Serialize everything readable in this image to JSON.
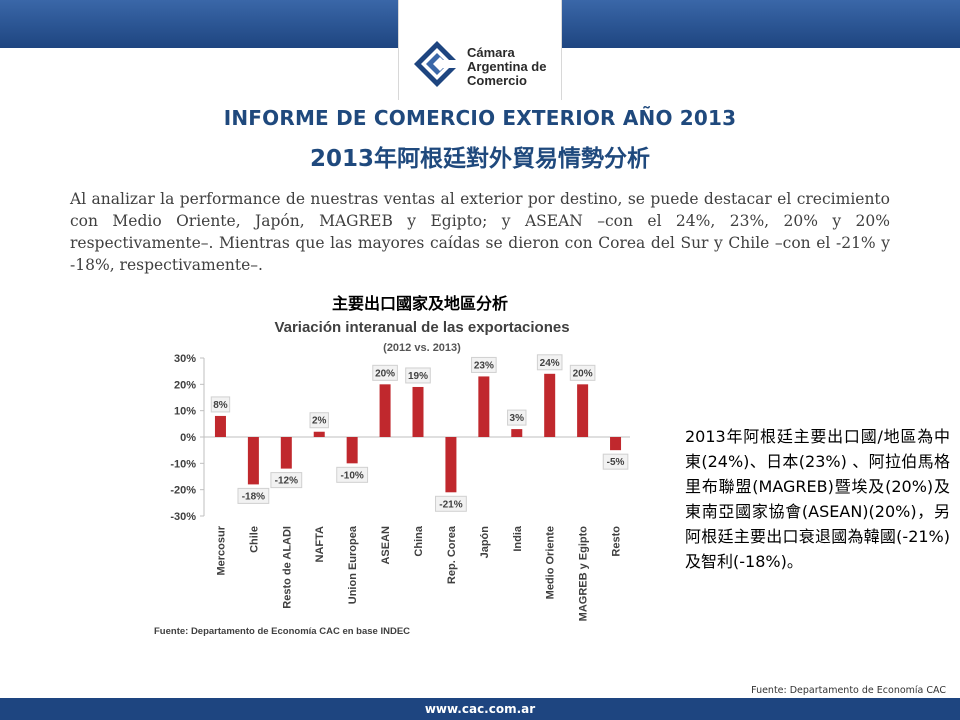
{
  "header": {
    "logo_lines": [
      "Cámara",
      "Argentina de",
      "Comercio"
    ]
  },
  "title_es": "INFORME DE COMERCIO EXTERIOR AÑO 2013",
  "title_zh": "2013年阿根廷對外貿易情勢分析",
  "intro_text": "Al analizar la performance de nuestras ventas al exterior por destino, se puede destacar el crecimiento con Medio Oriente, Japón, MAGREB y Egipto; y ASEAN –con el 24%, 23%, 20% y 20% respectivamente–. Mientras que las mayores caídas se dieron con Corea del Sur y Chile –con el -21% y -18%, respectivamente–.",
  "chart_heading": "主要出口國家及地區分析",
  "side_text": "2013年阿根廷主要出口國/地區為中東(24%)、日本(23%) 、阿拉伯馬格里布聯盟(MAGREB)暨埃及(20%)及東南亞國家協會(ASEAN)(20%)，另阿根廷主要出口衰退國為韓國(-21%)及智利(-18%)。",
  "side_source": "Fuente: Departamento de Economía CAC",
  "footer_url": "www.cac.com.ar",
  "colors": {
    "bar": "#c0282d",
    "brand_blue": "#1e4580",
    "title_blue": "#1f497d"
  },
  "chart_data": {
    "type": "bar",
    "title": "Variación interanual de las exportaciones",
    "subtitle": "(2012 vs. 2013)",
    "categories": [
      "Mercosur",
      "Chile",
      "Resto de ALADI",
      "NAFTA",
      "Union Europea",
      "ASEAN",
      "China",
      "Rep. Corea",
      "Japón",
      "India",
      "Medio Oriente",
      "MAGREB y Egipto",
      "Resto"
    ],
    "values": [
      8,
      -18,
      -12,
      2,
      -10,
      20,
      19,
      -21,
      23,
      3,
      24,
      20,
      -5
    ],
    "data_labels": [
      "8%",
      "-18%",
      "-12%",
      "2%",
      "-10%",
      "20%",
      "19%",
      "-21%",
      "23%",
      "3%",
      "24%",
      "20%",
      "-5%"
    ],
    "yticks": [
      "30%",
      "20%",
      "10%",
      "0%",
      "-10%",
      "-20%",
      "-30%"
    ],
    "ylim": [
      -30,
      30
    ],
    "grid": false,
    "source": "Fuente: Departamento de Economía CAC en base  INDEC"
  }
}
